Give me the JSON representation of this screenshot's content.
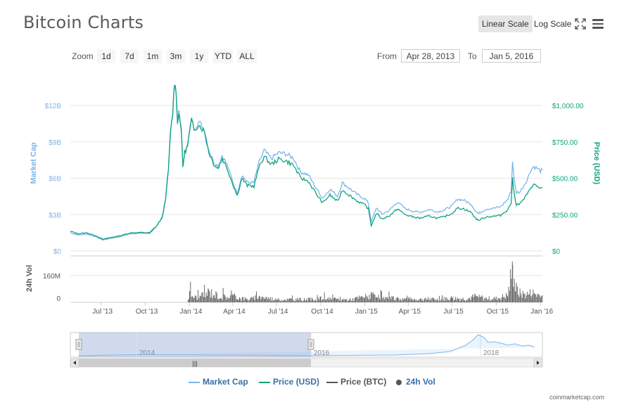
{
  "title": "Bitcoin Charts",
  "toolbar": {
    "linear_scale": "Linear Scale",
    "log_scale": "Log Scale",
    "fullscreen_icon": "fullscreen-icon",
    "menu_icon": "hamburger-menu-icon"
  },
  "zoom": {
    "label": "Zoom",
    "buttons": [
      "1d",
      "7d",
      "1m",
      "3m",
      "1y",
      "YTD",
      "ALL"
    ]
  },
  "range": {
    "from_label": "From",
    "from_value": "Apr 28, 2013",
    "to_label": "To",
    "to_value": "Jan 5, 2016"
  },
  "legend": {
    "items": [
      {
        "label": "Market Cap",
        "color": "#7cb5ec",
        "type": "line"
      },
      {
        "label": "Price (USD)",
        "color": "#10a37f",
        "type": "line"
      },
      {
        "label": "Price (BTC)",
        "color": "#555555",
        "type": "line"
      },
      {
        "label": "24h Vol",
        "color": "#555555",
        "type": "dot"
      }
    ]
  },
  "credits": "coinmarketcap.com",
  "navigator": {
    "labels": [
      "2014",
      "2016",
      "2018"
    ],
    "selection_range": [
      "Apr 28, 2013",
      "Jan 5, 2016"
    ]
  },
  "chart_data": {
    "type": "line",
    "x_axis": {
      "tick_labels": [
        "Jul '13",
        "Oct '13",
        "Jan '14",
        "Apr '14",
        "Jul '14",
        "Oct '14",
        "Jan '15",
        "Apr '15",
        "Jul '15",
        "Oct '15",
        "Jan '16"
      ],
      "range": [
        "2013-04-28",
        "2016-01-05"
      ]
    },
    "y_axis_left": {
      "label": "Market Cap",
      "tick_labels": [
        "$0",
        "$3B",
        "$6B",
        "$9B",
        "$12B"
      ],
      "ylim": [
        0,
        12000000000
      ],
      "color": "#7cb5ec"
    },
    "y_axis_right": {
      "label": "Price (USD)",
      "tick_labels": [
        "$0",
        "$250.00",
        "$500.00",
        "$750.00",
        "$1,000.00"
      ],
      "ylim": [
        0,
        1000
      ],
      "color": "#10a37f"
    },
    "volume_axis": {
      "label": "24h Vol",
      "tick_labels": [
        "0",
        "160M"
      ],
      "ylim": [
        0,
        240000000
      ]
    },
    "series": [
      {
        "name": "Price (USD)",
        "color": "#10a37f",
        "points": [
          [
            "2013-04-28",
            135
          ],
          [
            "2013-05-15",
            118
          ],
          [
            "2013-06-01",
            125
          ],
          [
            "2013-06-20",
            105
          ],
          [
            "2013-07-05",
            80
          ],
          [
            "2013-07-20",
            92
          ],
          [
            "2013-08-10",
            105
          ],
          [
            "2013-09-01",
            125
          ],
          [
            "2013-09-20",
            127
          ],
          [
            "2013-10-10",
            125
          ],
          [
            "2013-10-25",
            175
          ],
          [
            "2013-11-05",
            230
          ],
          [
            "2013-11-12",
            360
          ],
          [
            "2013-11-18",
            560
          ],
          [
            "2013-11-22",
            800
          ],
          [
            "2013-11-27",
            950
          ],
          [
            "2013-11-30",
            1140
          ],
          [
            "2013-12-04",
            1110
          ],
          [
            "2013-12-07",
            870
          ],
          [
            "2013-12-10",
            960
          ],
          [
            "2013-12-15",
            820
          ],
          [
            "2013-12-18",
            580
          ],
          [
            "2013-12-22",
            680
          ],
          [
            "2013-12-28",
            720
          ],
          [
            "2014-01-05",
            900
          ],
          [
            "2014-01-10",
            830
          ],
          [
            "2014-01-20",
            870
          ],
          [
            "2014-02-01",
            820
          ],
          [
            "2014-02-10",
            680
          ],
          [
            "2014-02-20",
            600
          ],
          [
            "2014-03-01",
            565
          ],
          [
            "2014-03-10",
            635
          ],
          [
            "2014-03-20",
            570
          ],
          [
            "2014-04-01",
            460
          ],
          [
            "2014-04-10",
            380
          ],
          [
            "2014-04-20",
            500
          ],
          [
            "2014-05-01",
            450
          ],
          [
            "2014-05-15",
            445
          ],
          [
            "2014-05-25",
            570
          ],
          [
            "2014-06-05",
            650
          ],
          [
            "2014-06-20",
            595
          ],
          [
            "2014-07-05",
            630
          ],
          [
            "2014-07-20",
            620
          ],
          [
            "2014-08-05",
            590
          ],
          [
            "2014-08-20",
            500
          ],
          [
            "2014-09-05",
            480
          ],
          [
            "2014-09-20",
            400
          ],
          [
            "2014-10-05",
            330
          ],
          [
            "2014-10-20",
            385
          ],
          [
            "2014-11-05",
            340
          ],
          [
            "2014-11-15",
            420
          ],
          [
            "2014-12-01",
            380
          ],
          [
            "2014-12-15",
            345
          ],
          [
            "2015-01-01",
            315
          ],
          [
            "2015-01-08",
            290
          ],
          [
            "2015-01-14",
            175
          ],
          [
            "2015-01-25",
            260
          ],
          [
            "2015-02-05",
            220
          ],
          [
            "2015-02-20",
            240
          ],
          [
            "2015-03-10",
            290
          ],
          [
            "2015-03-25",
            250
          ],
          [
            "2015-04-10",
            235
          ],
          [
            "2015-04-25",
            225
          ],
          [
            "2015-05-15",
            240
          ],
          [
            "2015-06-01",
            225
          ],
          [
            "2015-06-15",
            235
          ],
          [
            "2015-07-01",
            258
          ],
          [
            "2015-07-12",
            295
          ],
          [
            "2015-07-25",
            290
          ],
          [
            "2015-08-10",
            265
          ],
          [
            "2015-08-19",
            225
          ],
          [
            "2015-08-25",
            210
          ],
          [
            "2015-09-10",
            235
          ],
          [
            "2015-09-25",
            238
          ],
          [
            "2015-10-10",
            245
          ],
          [
            "2015-10-25",
            285
          ],
          [
            "2015-11-01",
            330
          ],
          [
            "2015-11-04",
            495
          ],
          [
            "2015-11-08",
            380
          ],
          [
            "2015-11-12",
            320
          ],
          [
            "2015-11-20",
            325
          ],
          [
            "2015-11-28",
            360
          ],
          [
            "2015-12-05",
            390
          ],
          [
            "2015-12-12",
            440
          ],
          [
            "2015-12-18",
            455
          ],
          [
            "2015-12-25",
            445
          ],
          [
            "2016-01-01",
            430
          ],
          [
            "2016-01-05",
            435
          ]
        ]
      },
      {
        "name": "Market Cap",
        "color": "#7cb5ec",
        "points": [
          [
            "2013-04-28",
            1500000000
          ],
          [
            "2013-05-15",
            1320000000
          ],
          [
            "2013-06-01",
            1400000000
          ],
          [
            "2013-06-20",
            1180000000
          ],
          [
            "2013-07-05",
            900000000
          ],
          [
            "2013-07-20",
            1040000000
          ],
          [
            "2013-08-10",
            1190000000
          ],
          [
            "2013-09-01",
            1430000000
          ],
          [
            "2013-09-20",
            1460000000
          ],
          [
            "2013-10-10",
            1450000000
          ],
          [
            "2013-10-25",
            2040000000
          ],
          [
            "2013-11-05",
            2700000000
          ],
          [
            "2013-11-12",
            4250000000
          ],
          [
            "2013-11-18",
            6640000000
          ],
          [
            "2013-11-22",
            9520000000
          ],
          [
            "2013-11-27",
            11340000000
          ],
          [
            "2013-11-30",
            13640000000
          ],
          [
            "2013-12-04",
            13310000000
          ],
          [
            "2013-12-07",
            10450000000
          ],
          [
            "2013-12-10",
            11560000000
          ],
          [
            "2013-12-15",
            9890000000
          ],
          [
            "2013-12-18",
            7000000000
          ],
          [
            "2013-12-22",
            8220000000
          ],
          [
            "2013-12-28",
            8720000000
          ],
          [
            "2014-01-05",
            10950000000
          ],
          [
            "2014-01-10",
            10120000000
          ],
          [
            "2014-01-20",
            10640000000
          ],
          [
            "2014-02-01",
            10040000000
          ],
          [
            "2014-02-10",
            8370000000
          ],
          [
            "2014-02-20",
            7410000000
          ],
          [
            "2014-03-01",
            6990000000
          ],
          [
            "2014-03-10",
            7880000000
          ],
          [
            "2014-03-20",
            7100000000
          ],
          [
            "2014-04-01",
            5740000000
          ],
          [
            "2014-04-10",
            4760000000
          ],
          [
            "2014-04-20",
            6270000000
          ],
          [
            "2014-05-01",
            5660000000
          ],
          [
            "2014-05-15",
            5630000000
          ],
          [
            "2014-05-25",
            7240000000
          ],
          [
            "2014-06-05",
            8280000000
          ],
          [
            "2014-06-20",
            7620000000
          ],
          [
            "2014-07-05",
            8100000000
          ],
          [
            "2014-07-20",
            8010000000
          ],
          [
            "2014-08-05",
            7660000000
          ],
          [
            "2014-08-20",
            6520000000
          ],
          [
            "2014-09-05",
            6280000000
          ],
          [
            "2014-09-20",
            5260000000
          ],
          [
            "2014-10-05",
            4360000000
          ],
          [
            "2014-10-20",
            5110000000
          ],
          [
            "2014-11-05",
            4540000000
          ],
          [
            "2014-11-15",
            5630000000
          ],
          [
            "2014-12-01",
            5120000000
          ],
          [
            "2014-12-15",
            4670000000
          ],
          [
            "2015-01-01",
            4290000000
          ],
          [
            "2015-01-08",
            3960000000
          ],
          [
            "2015-01-14",
            2400000000
          ],
          [
            "2015-01-25",
            3570000000
          ],
          [
            "2015-02-05",
            3030000000
          ],
          [
            "2015-02-20",
            3330000000
          ],
          [
            "2015-03-10",
            4050000000
          ],
          [
            "2015-03-25",
            3500000000
          ],
          [
            "2015-04-10",
            3300000000
          ],
          [
            "2015-04-25",
            3180000000
          ],
          [
            "2015-05-15",
            3420000000
          ],
          [
            "2015-06-01",
            3220000000
          ],
          [
            "2015-06-15",
            3380000000
          ],
          [
            "2015-07-01",
            3720000000
          ],
          [
            "2015-07-12",
            4270000000
          ],
          [
            "2015-07-25",
            4200000000
          ],
          [
            "2015-08-10",
            3860000000
          ],
          [
            "2015-08-19",
            3290000000
          ],
          [
            "2015-08-25",
            3080000000
          ],
          [
            "2015-09-10",
            3460000000
          ],
          [
            "2015-09-25",
            3520000000
          ],
          [
            "2015-10-10",
            3640000000
          ],
          [
            "2015-10-25",
            4260000000
          ],
          [
            "2015-11-01",
            4950000000
          ],
          [
            "2015-11-04",
            7400000000
          ],
          [
            "2015-11-08",
            5700000000
          ],
          [
            "2015-11-12",
            4820000000
          ],
          [
            "2015-11-20",
            4900000000
          ],
          [
            "2015-11-28",
            5450000000
          ],
          [
            "2015-12-05",
            5930000000
          ],
          [
            "2015-12-12",
            6700000000
          ],
          [
            "2015-12-18",
            6950000000
          ],
          [
            "2015-12-25",
            6820000000
          ],
          [
            "2016-01-01",
            6600000000
          ],
          [
            "2016-01-05",
            6680000000
          ]
        ]
      },
      {
        "name": "24h Vol",
        "type": "column",
        "color": "#555555",
        "points": [
          [
            "2013-12-27",
            0
          ],
          [
            "2014-01-01",
            55000000
          ],
          [
            "2014-01-15",
            30000000
          ],
          [
            "2014-02-01",
            45000000
          ],
          [
            "2014-02-10",
            70000000
          ],
          [
            "2014-02-25",
            50000000
          ],
          [
            "2014-03-10",
            35000000
          ],
          [
            "2014-04-01",
            40000000
          ],
          [
            "2014-04-15",
            30000000
          ],
          [
            "2014-05-01",
            20000000
          ],
          [
            "2014-06-01",
            35000000
          ],
          [
            "2014-07-01",
            18000000
          ],
          [
            "2014-08-01",
            20000000
          ],
          [
            "2014-09-01",
            18000000
          ],
          [
            "2014-10-01",
            25000000
          ],
          [
            "2014-11-01",
            20000000
          ],
          [
            "2014-12-01",
            18000000
          ],
          [
            "2015-01-14",
            45000000
          ],
          [
            "2015-02-01",
            28000000
          ],
          [
            "2015-03-01",
            25000000
          ],
          [
            "2015-04-01",
            22000000
          ],
          [
            "2015-05-01",
            20000000
          ],
          [
            "2015-06-01",
            20000000
          ],
          [
            "2015-07-01",
            28000000
          ],
          [
            "2015-08-01",
            22000000
          ],
          [
            "2015-08-19",
            40000000
          ],
          [
            "2015-09-01",
            25000000
          ],
          [
            "2015-10-01",
            25000000
          ],
          [
            "2015-10-25",
            45000000
          ],
          [
            "2015-11-04",
            220000000
          ],
          [
            "2015-11-10",
            90000000
          ],
          [
            "2015-11-20",
            55000000
          ],
          [
            "2015-12-01",
            50000000
          ],
          [
            "2015-12-15",
            60000000
          ],
          [
            "2016-01-01",
            45000000
          ],
          [
            "2016-01-05",
            40000000
          ]
        ]
      }
    ]
  }
}
